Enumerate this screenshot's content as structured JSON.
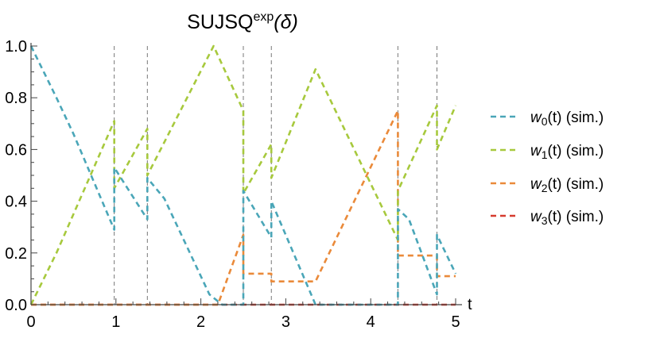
{
  "chart_data": {
    "type": "line",
    "title": {
      "main": "SUJSQ",
      "sup": "exp",
      "arg": "(δ)"
    },
    "xlabel": "t",
    "ylabel": "",
    "xlim": [
      0,
      5
    ],
    "ylim": [
      0,
      1
    ],
    "xticks": [
      0,
      1,
      2,
      3,
      4,
      5
    ],
    "yticks": [
      "0.0",
      "0.2",
      "0.4",
      "0.6",
      "0.8",
      "1.0"
    ],
    "event_lines": [
      0.98,
      1.37,
      2.5,
      2.83,
      4.32,
      4.78
    ],
    "grid": false,
    "legend_position": "right",
    "series": [
      {
        "name": "w0(t) (sim.)",
        "sub": "0",
        "color": "#4aa6b8",
        "points": [
          [
            0,
            1.0
          ],
          [
            0.3,
            0.8
          ],
          [
            0.5,
            0.66
          ],
          [
            0.98,
            0.29
          ],
          [
            0.98,
            0.53
          ],
          [
            1.37,
            0.33
          ],
          [
            1.37,
            0.49
          ],
          [
            1.57,
            0.41
          ],
          [
            2.1,
            0.04
          ],
          [
            2.25,
            0.0
          ],
          [
            2.5,
            0.0
          ],
          [
            2.5,
            0.44
          ],
          [
            2.83,
            0.26
          ],
          [
            2.83,
            0.4
          ],
          [
            3.35,
            0.0
          ],
          [
            4.32,
            0.0
          ],
          [
            4.32,
            0.37
          ],
          [
            4.45,
            0.33
          ],
          [
            4.78,
            0.04
          ],
          [
            4.78,
            0.27
          ],
          [
            5.0,
            0.12
          ]
        ]
      },
      {
        "name": "w1(t) (sim.)",
        "sub": "1",
        "color": "#a7c93d",
        "points": [
          [
            0,
            0.0
          ],
          [
            0.3,
            0.2
          ],
          [
            0.98,
            0.71
          ],
          [
            0.98,
            0.45
          ],
          [
            1.37,
            0.68
          ],
          [
            1.37,
            0.5
          ],
          [
            2.15,
            1.0
          ],
          [
            2.5,
            0.75
          ],
          [
            2.5,
            0.43
          ],
          [
            2.83,
            0.62
          ],
          [
            2.83,
            0.49
          ],
          [
            3.35,
            0.91
          ],
          [
            4.32,
            0.25
          ],
          [
            4.32,
            0.44
          ],
          [
            4.78,
            0.77
          ],
          [
            4.78,
            0.6
          ],
          [
            5.0,
            0.77
          ]
        ]
      },
      {
        "name": "w2(t) (sim.)",
        "sub": "2",
        "color": "#ea8a3a",
        "points": [
          [
            0,
            0.0
          ],
          [
            2.2,
            0.0
          ],
          [
            2.5,
            0.27
          ],
          [
            2.5,
            0.12
          ],
          [
            2.83,
            0.12
          ],
          [
            2.83,
            0.09
          ],
          [
            3.35,
            0.09
          ],
          [
            4.32,
            0.75
          ],
          [
            4.32,
            0.19
          ],
          [
            4.78,
            0.19
          ],
          [
            4.78,
            0.11
          ],
          [
            5.0,
            0.11
          ]
        ]
      },
      {
        "name": "w3(t) (sim.)",
        "sub": "3",
        "color": "#d63b2e",
        "points": [
          [
            0,
            0.0
          ],
          [
            5.0,
            0.0
          ]
        ]
      }
    ]
  }
}
